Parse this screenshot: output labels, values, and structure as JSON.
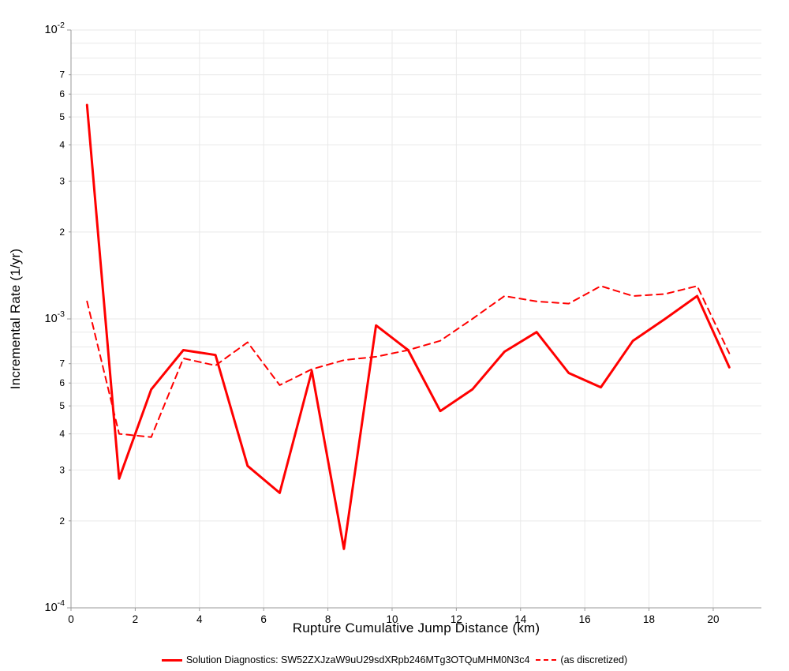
{
  "colors": {
    "grid": "#e9e9e9",
    "axis": "#9a9a9a",
    "tick_label": "#000000",
    "series_red": "#ff0000",
    "background": "#ffffff"
  },
  "chart_data": {
    "type": "line",
    "title": "",
    "xlabel": "Rupture Cumulative Jump Distance (km)",
    "ylabel": "Incremental Rate (1/yr)",
    "xlim": [
      0,
      21.5
    ],
    "ylog_exp_range": [
      -4,
      -2
    ],
    "grid": true,
    "legend_position": "bottom",
    "x_ticks": [
      0,
      2,
      4,
      6,
      8,
      10,
      12,
      14,
      16,
      18,
      20
    ],
    "y_decade_ticks": [
      -2,
      -3,
      -4
    ],
    "y_minor_labels": [
      2,
      3,
      4,
      5,
      6,
      7
    ],
    "x": [
      0.5,
      1.5,
      2.5,
      3.5,
      4.5,
      5.5,
      6.5,
      7.5,
      8.5,
      9.5,
      10.5,
      11.5,
      12.5,
      13.5,
      14.5,
      15.5,
      16.5,
      17.5,
      18.5,
      19.5,
      20.5
    ],
    "series": [
      {
        "name": "Solution Diagnostics: SW52ZXJzaW9uU29sdXRpb246MTg3OTQuMHM0N3c4",
        "style": "solid",
        "color": "#ff0000",
        "width": 3,
        "values": [
          0.0055,
          0.00028,
          0.00057,
          0.00078,
          0.00075,
          0.00031,
          0.00025,
          0.00066,
          0.00016,
          0.00095,
          0.00078,
          0.00048,
          0.00057,
          0.00077,
          0.0009,
          0.00065,
          0.00058,
          0.00084,
          0.001,
          0.0012,
          0.00068
        ]
      },
      {
        "name": "(as discretized)",
        "style": "dashed",
        "color": "#ff0000",
        "width": 2,
        "values": [
          0.00115,
          0.0004,
          0.00039,
          0.00073,
          0.00069,
          0.00083,
          0.00059,
          0.00067,
          0.00072,
          0.00074,
          0.00078,
          0.00084,
          0.001,
          0.0012,
          0.00115,
          0.00113,
          0.0013,
          0.0012,
          0.00122,
          0.0013,
          0.00076
        ]
      }
    ]
  }
}
